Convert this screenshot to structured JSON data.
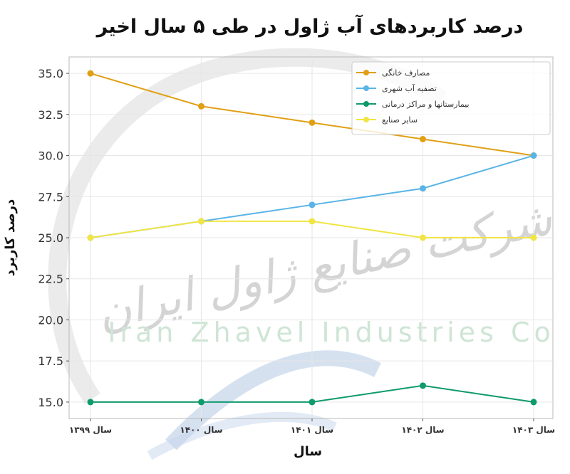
{
  "chart_data": {
    "type": "line",
    "title": "درصد کاربردهای آب ژاول در طی ۵ سال اخیر",
    "xlabel": "سال",
    "ylabel": "درصد کاربرد",
    "categories": [
      "سال ۱۳۹۹",
      "سال ۱۴۰۰",
      "سال ۱۴۰۱",
      "سال ۱۴۰۲",
      "سال ۱۴۰۳"
    ],
    "ylim": [
      14.0,
      36.0
    ],
    "yticks": [
      "15.0",
      "17.5",
      "20.0",
      "22.5",
      "25.0",
      "27.5",
      "30.0",
      "32.5",
      "35.0"
    ],
    "grid": true,
    "legend_position": "top-right",
    "series": [
      {
        "name": "مصارف خانگی",
        "color": "#e0a015",
        "values": [
          35,
          33,
          32,
          31,
          30
        ]
      },
      {
        "name": "تصفیه آب شهری",
        "color": "#5ab4e5",
        "values": [
          25,
          26,
          27,
          28,
          30
        ]
      },
      {
        "name": "بیمارستانها و مراکز درمانی",
        "color": "#0f9a6c",
        "values": [
          15,
          15,
          15,
          16,
          15
        ]
      },
      {
        "name": "سایر صنایع",
        "color": "#f1e543",
        "values": [
          25,
          26,
          26,
          25,
          25
        ]
      }
    ]
  },
  "watermark": {
    "text_latin": "Iran Zhavel Industries Co",
    "text_persian": "شرکت صنایع ژاول ایران"
  }
}
